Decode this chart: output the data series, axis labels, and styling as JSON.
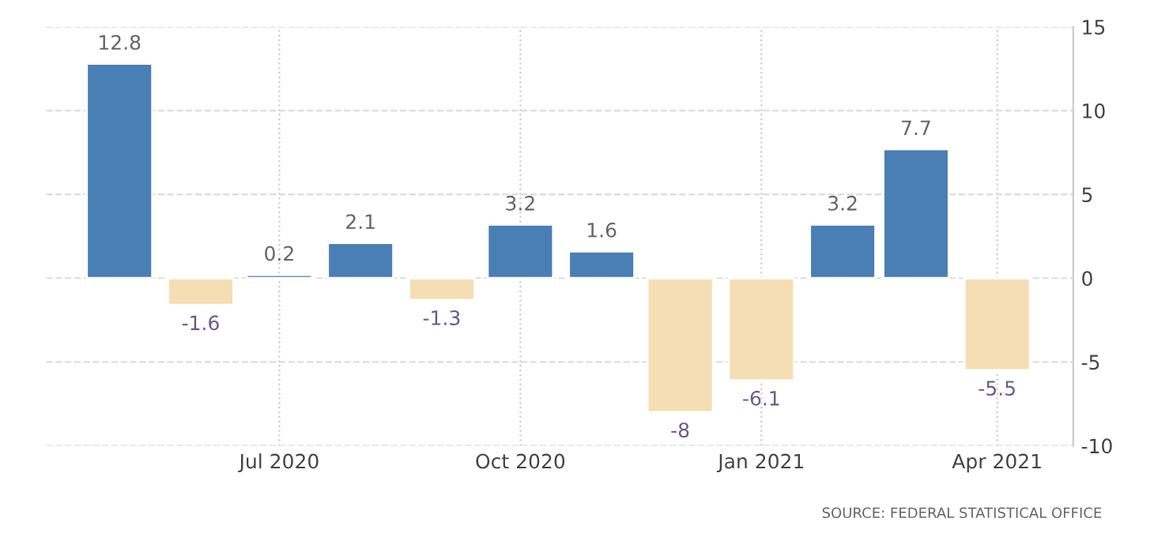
{
  "chart_data": {
    "type": "bar",
    "x": [
      "2020-05",
      "2020-06",
      "2020-07",
      "2020-08",
      "2020-09",
      "2020-10",
      "2020-11",
      "2020-12",
      "2021-01",
      "2021-02",
      "2021-03",
      "2021-04"
    ],
    "values": [
      12.8,
      -1.6,
      0.2,
      2.1,
      -1.3,
      3.2,
      1.6,
      -8,
      -6.1,
      3.2,
      7.7,
      -5.5
    ],
    "colors": [
      "#4a7fb5",
      "#f5deb3",
      "#4a7fb5",
      "#4a7fb5",
      "#f5deb3",
      "#4a7fb5",
      "#4a7fb5",
      "#f5deb3",
      "#f5deb3",
      "#4a7fb5",
      "#4a7fb5",
      "#f5deb3"
    ],
    "data_labels": true,
    "xlim": [
      "2020-04-03",
      "2021-04-30"
    ],
    "xticks": [
      {
        "value": "2020-07",
        "label": "Jul 2020"
      },
      {
        "value": "2020-10",
        "label": "Oct 2020"
      },
      {
        "value": "2021-01",
        "label": "Jan 2021"
      },
      {
        "value": "2021-04",
        "label": "Apr 2021"
      }
    ],
    "ylim": [
      -10,
      15
    ],
    "yticks": [
      -10,
      -5,
      0,
      5,
      10,
      15
    ],
    "grid": true,
    "annotations": [
      "SOURCE: FEDERAL STATISTICAL OFFICE"
    ]
  }
}
